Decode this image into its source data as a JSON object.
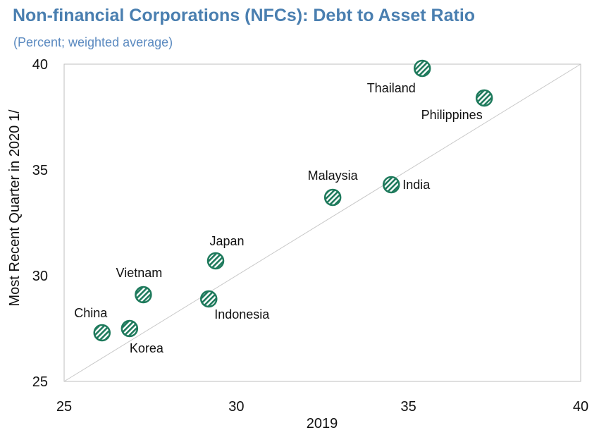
{
  "title": "Non-financial Corporations (NFCs): Debt to Asset Ratio",
  "subtitle": "(Percent; weighted average)",
  "colors": {
    "title": "#4a7fb0",
    "marker": "#1e7a5c",
    "diagonal": "#c8c8c8"
  },
  "chart_data": {
    "type": "scatter",
    "title": "Non-financial Corporations (NFCs): Debt to Asset Ratio",
    "subtitle": "(Percent; weighted average)",
    "xlabel": "2019",
    "ylabel": "Most Recent Quarter in 2020 1/",
    "xlim": [
      25,
      40
    ],
    "ylim": [
      25,
      40
    ],
    "xticks": [
      "25",
      "30",
      "35",
      "40"
    ],
    "yticks": [
      "25",
      "30",
      "35",
      "40"
    ],
    "reference_line": "45-degree",
    "grid": false,
    "points": [
      {
        "label": "China",
        "x": 26.1,
        "y": 27.3
      },
      {
        "label": "Korea",
        "x": 26.9,
        "y": 27.5
      },
      {
        "label": "Vietnam",
        "x": 27.3,
        "y": 29.1
      },
      {
        "label": "Indonesia",
        "x": 29.2,
        "y": 28.9
      },
      {
        "label": "Japan",
        "x": 29.4,
        "y": 30.7
      },
      {
        "label": "Malaysia",
        "x": 32.8,
        "y": 33.7
      },
      {
        "label": "India",
        "x": 34.5,
        "y": 34.3
      },
      {
        "label": "Thailand",
        "x": 35.4,
        "y": 39.8
      },
      {
        "label": "Philippines",
        "x": 37.2,
        "y": 38.4
      }
    ]
  }
}
